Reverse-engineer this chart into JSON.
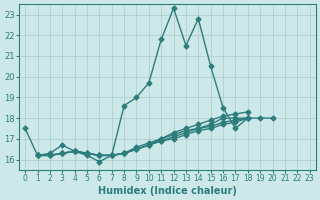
{
  "xlabel": "Humidex (Indice chaleur)",
  "ylabel": "",
  "bg_color": "#cce8e8",
  "line_color": "#2e7d7d",
  "grid_color": "#aacccc",
  "xlim": [
    -0.5,
    23.5
  ],
  "ylim": [
    15.5,
    23.5
  ],
  "yticks": [
    16,
    17,
    18,
    19,
    20,
    21,
    22,
    23
  ],
  "xticks": [
    0,
    1,
    2,
    3,
    4,
    5,
    6,
    7,
    8,
    9,
    10,
    11,
    12,
    13,
    14,
    15,
    16,
    17,
    18,
    19,
    20,
    21,
    22,
    23
  ],
  "series": [
    [
      17.5,
      16.2,
      16.3,
      16.7,
      16.4,
      16.2,
      15.9,
      16.2,
      18.6,
      19.0,
      19.7,
      21.8,
      23.3,
      21.5,
      22.8,
      20.5,
      18.5,
      17.5,
      18.0,
      18.0,
      18.0
    ],
    [
      16.2,
      16.2,
      16.3,
      16.4,
      16.3,
      16.2,
      16.2,
      16.3,
      16.5,
      16.7,
      17.0,
      17.2,
      17.4,
      17.5,
      17.7,
      18.0,
      18.0,
      18.0
    ],
    [
      16.2,
      16.2,
      16.3,
      16.4,
      16.3,
      16.2,
      16.2,
      16.3,
      16.5,
      16.7,
      16.9,
      17.1,
      17.3,
      17.5,
      17.6,
      17.8,
      17.9,
      18.0
    ],
    [
      16.2,
      16.2,
      16.3,
      16.4,
      16.3,
      16.2,
      16.2,
      16.3,
      16.5,
      16.7,
      16.9,
      17.0,
      17.2,
      17.4,
      17.5,
      17.7,
      17.8,
      18.0
    ],
    [
      16.2,
      16.2,
      16.3,
      16.4,
      16.3,
      16.2,
      16.2,
      16.3,
      16.6,
      16.8,
      17.0,
      17.3,
      17.5,
      17.7,
      17.9,
      18.1,
      18.2,
      18.3
    ]
  ],
  "series_x_starts": [
    0,
    1,
    1,
    1,
    1
  ],
  "marker": "D",
  "markersize": 2.5,
  "linewidth": 1.0
}
